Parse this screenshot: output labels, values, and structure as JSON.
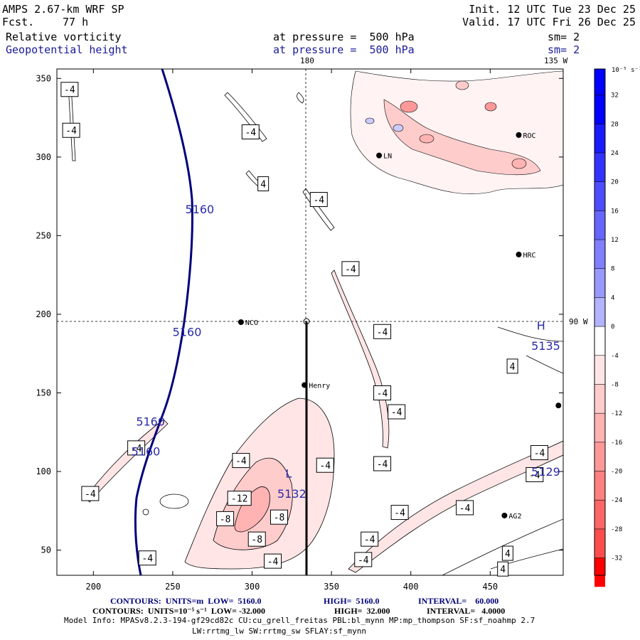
{
  "header": {
    "model": "AMPS 2.67-km WRF SP",
    "fcst_label": "Fcst.",
    "fcst_value": "77 h",
    "init": "Init. 12 UTC Tue 23 Dec 25",
    "valid": "Valid. 17 UTC Fri 26 Dec 25",
    "field1_name": "Relative vorticity",
    "field1_level": "at pressure =  500 hPa",
    "field1_sm": "sm= 2",
    "field2_name": "Geopotential height",
    "field2_level": "at pressure =  500 hPa",
    "field2_sm": "sm= 2"
  },
  "map_labels": {
    "lon_180": "180",
    "lon_135w": "135 W",
    "lon_90w": "90 W"
  },
  "stations": [
    {
      "name": "NCO",
      "x": 293,
      "y": 195
    },
    {
      "name": "Henry",
      "x": 333,
      "y": 155
    },
    {
      "name": "HRC",
      "x": 468,
      "y": 238
    },
    {
      "name": "ROC",
      "x": 468,
      "y": 314
    },
    {
      "name": "LN",
      "x": 380,
      "y": 301
    },
    {
      "name": "AG2",
      "x": 459,
      "y": 72
    },
    {
      "name": "",
      "x": 493,
      "y": 142
    }
  ],
  "height_labels": [
    {
      "text": "5160",
      "x": 267,
      "y": 267
    },
    {
      "text": "5160",
      "x": 259,
      "y": 189
    },
    {
      "text": "5160",
      "x": 236,
      "y": 132
    },
    {
      "text": "5160",
      "x": 233,
      "y": 113
    },
    {
      "text": "L",
      "x": 323,
      "y": 99
    },
    {
      "text": "5132",
      "x": 325,
      "y": 86
    },
    {
      "text": "H",
      "x": 482,
      "y": 193
    },
    {
      "text": "5135",
      "x": 485,
      "y": 180
    },
    {
      "text": "5129",
      "x": 485,
      "y": 100
    }
  ],
  "vort_labels": [
    {
      "text": "-4",
      "x": 185,
      "y": 343
    },
    {
      "text": "-4",
      "x": 186,
      "y": 317
    },
    {
      "text": "-4",
      "x": 299,
      "y": 316
    },
    {
      "text": "4",
      "x": 307,
      "y": 283
    },
    {
      "text": "-4",
      "x": 342,
      "y": 273
    },
    {
      "text": "-4",
      "x": 362,
      "y": 229
    },
    {
      "text": "-4",
      "x": 382,
      "y": 189
    },
    {
      "text": "-4",
      "x": 382,
      "y": 150
    },
    {
      "text": "-4",
      "x": 391,
      "y": 138
    },
    {
      "text": "-4",
      "x": 382,
      "y": 105
    },
    {
      "text": "-4",
      "x": 293,
      "y": 107
    },
    {
      "text": "-4",
      "x": 346,
      "y": 104
    },
    {
      "text": "-12",
      "x": 292,
      "y": 83
    },
    {
      "text": "-8",
      "x": 283,
      "y": 70
    },
    {
      "text": "-8",
      "x": 317,
      "y": 71
    },
    {
      "text": "-8",
      "x": 303,
      "y": 57
    },
    {
      "text": "-4",
      "x": 234,
      "y": 45
    },
    {
      "text": "-4",
      "x": 313,
      "y": 43
    },
    {
      "text": "-4",
      "x": 374,
      "y": 57
    },
    {
      "text": "-4",
      "x": 370,
      "y": 44
    },
    {
      "text": "-4",
      "x": 393,
      "y": 74
    },
    {
      "text": "-4",
      "x": 434,
      "y": 77
    },
    {
      "text": "-4",
      "x": 198,
      "y": 86
    },
    {
      "text": "-4",
      "x": 227,
      "y": 115
    },
    {
      "text": "4",
      "x": 464,
      "y": 167
    },
    {
      "text": "-4",
      "x": 481,
      "y": 112
    },
    {
      "text": "-4",
      "x": 478,
      "y": 98
    },
    {
      "text": "4",
      "x": 461,
      "y": 48
    },
    {
      "text": "4",
      "x": 458,
      "y": 38
    }
  ],
  "chart_data": {
    "type": "contour",
    "title": "Relative vorticity / Geopotential height at 500 hPa",
    "x_ticks": [
      200,
      250,
      300,
      350,
      400,
      450
    ],
    "y_ticks": [
      50,
      100,
      150,
      200,
      250,
      300,
      350
    ],
    "xlim": [
      177,
      496
    ],
    "ylim": [
      34,
      356
    ],
    "colorbar": {
      "unit": "10⁻⁵ s⁻¹",
      "levels": [
        32,
        28,
        24,
        20,
        16,
        12,
        8,
        4,
        0,
        -4,
        -8,
        -12,
        -16,
        -20,
        -24,
        -28,
        -32
      ],
      "colors": [
        "#0000ff",
        "#1a1aff",
        "#3333ff",
        "#4d4dff",
        "#6666ff",
        "#8080ff",
        "#9999ff",
        "#b3b3ff",
        "#ffffff",
        "#ffe5e5",
        "#ffcccc",
        "#ffb3b3",
        "#ff9999",
        "#ff8080",
        "#ff6666",
        "#ff4d4d",
        "#ff0000"
      ]
    },
    "height_contour": {
      "low": 5160.0,
      "high": 5160.0,
      "interval": 60.0,
      "units": "m"
    },
    "vort_contour": {
      "low": -32.0,
      "high": 32.0,
      "interval": 4.0
    }
  },
  "footer": {
    "line1_a": "CONTOURS:  UNITS=m  LOW=  5160.0",
    "line1_b": "HIGH=  5160.0",
    "line1_c": "INTERVAL=    60.000",
    "line2_a": "CONTOURS:  UNITS=10⁻⁵ s⁻¹  LOW= -32.000",
    "line2_b": "HIGH=  32.000",
    "line2_c": "INTERVAL=   4.0000",
    "model_info": "Model Info: MPASv8.2.3-194-gf29cd82c CU:cu_grell_freitas PBL:bl_mynn MP:mp_thompson SF:sf_noahmp 2.7",
    "model_info2": "LW:rrtmg_lw SW:rrtmg_sw SFLAY:sf_mynn"
  }
}
